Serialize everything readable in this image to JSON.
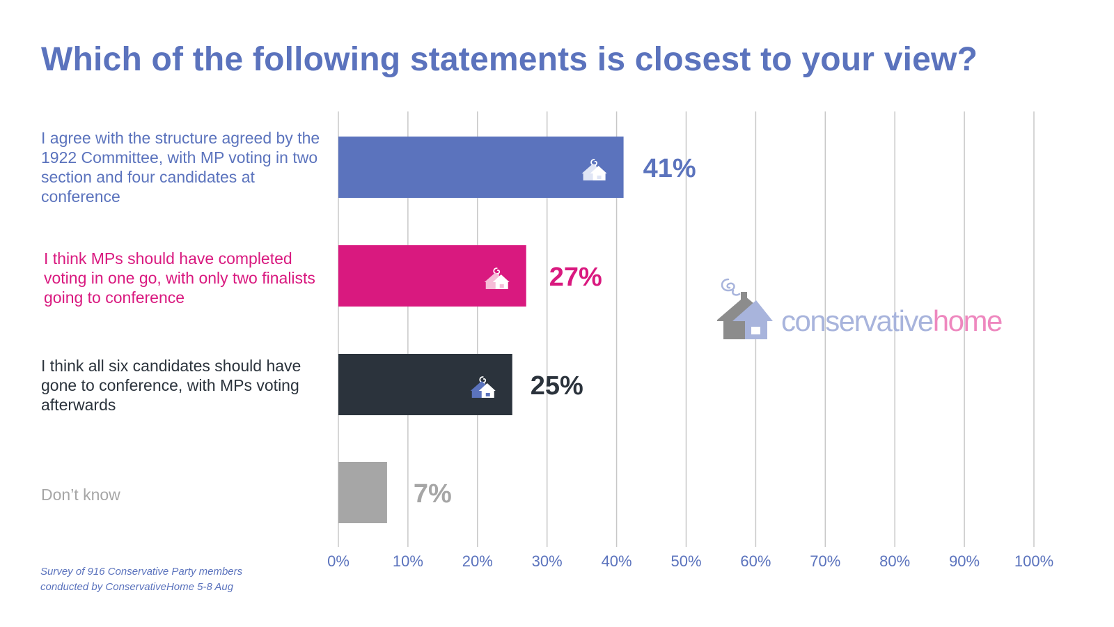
{
  "title": "Which of the following statements is closest to your view?",
  "colors": {
    "title": "#5b73bd",
    "grid": "#c8c8c8",
    "axis_tick_label": "#5b73bd",
    "logo_house_dark": "#8c8c8c",
    "logo_house_light": "#a8b4dc",
    "logo_word_a": "#a8b4dc",
    "logo_word_b": "#ee88bf"
  },
  "chart_data": {
    "type": "bar",
    "orientation": "horizontal",
    "title": "Which of the following statements is closest to your view?",
    "xlabel": "",
    "ylabel": "",
    "xlim": [
      0,
      100
    ],
    "grid": true,
    "x_ticks": [
      0,
      10,
      20,
      30,
      40,
      50,
      60,
      70,
      80,
      90,
      100
    ],
    "x_tick_labels": [
      "0%",
      "10%",
      "20%",
      "30%",
      "40%",
      "50%",
      "60%",
      "70%",
      "80%",
      "90%",
      "100%"
    ],
    "categories": [
      {
        "label": "I agree with the structure agreed by the 1922 Committee, with MP voting in two section and four candidates at conference",
        "value": 41,
        "value_label": "41%",
        "color": "#5b73bd",
        "label_color": "#5b73bd",
        "has_house_icon": true
      },
      {
        "label": "I think MPs should have completed voting in one go, with only two finalists going to conference",
        "value": 27,
        "value_label": "27%",
        "color": "#d9197f",
        "label_color": "#d9197f",
        "has_house_icon": true
      },
      {
        "label": "I think all six candidates should have gone to conference, with MPs voting afterwards",
        "value": 25,
        "value_label": "25%",
        "color": "#2b333c",
        "label_color": "#2b333c",
        "has_house_icon": true
      },
      {
        "label": "Don’t know",
        "value": 7,
        "value_label": "7%",
        "color": "#a6a6a6",
        "label_color": "#a6a6a6",
        "has_house_icon": false
      }
    ]
  },
  "footnote": {
    "line1": "Survey of 916 Conservative Party members",
    "line2": "conducted by ConservativeHome 5-8 Aug"
  },
  "logo": {
    "word_a": "conservative",
    "word_b": "home"
  }
}
